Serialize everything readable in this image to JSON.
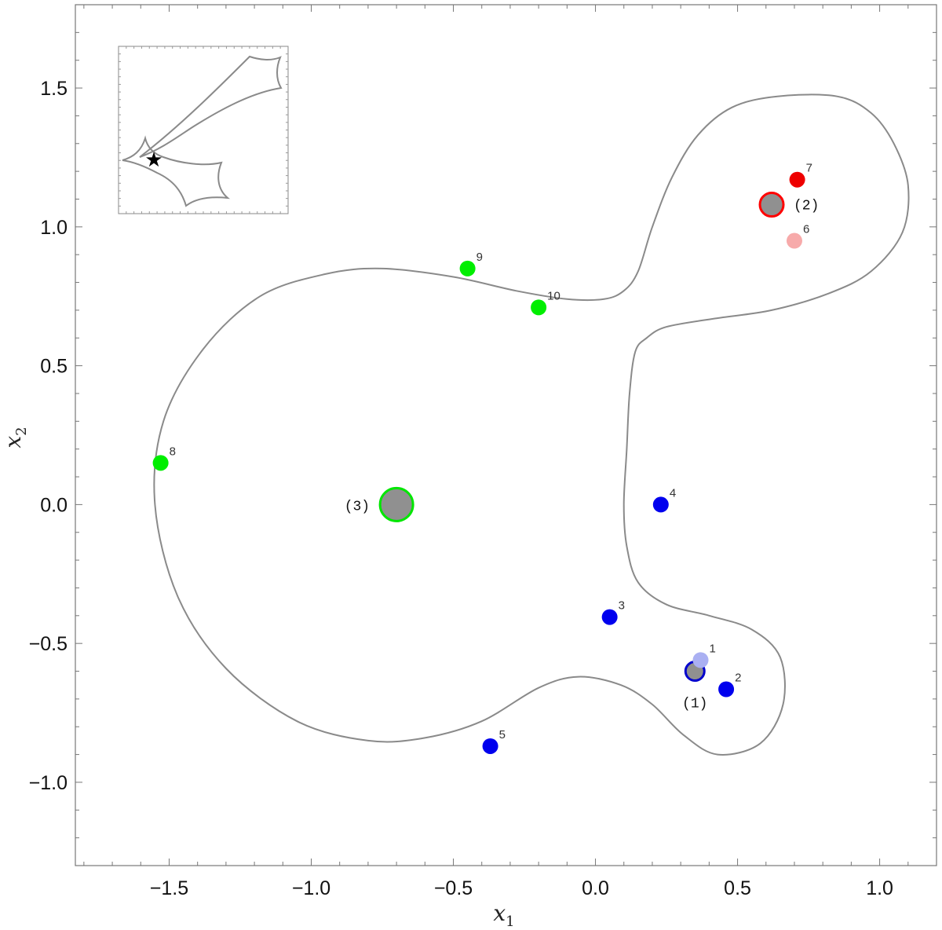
{
  "chart_data": {
    "type": "scatter",
    "title": "",
    "xlabel": "x",
    "xlabel_sub": "1",
    "ylabel": "x",
    "ylabel_sub": "2",
    "xlim": [
      -1.83,
      1.2
    ],
    "ylim": [
      -1.3,
      1.8
    ],
    "xticks": [
      {
        "v": -1.5,
        "label": "−1.5"
      },
      {
        "v": -1.0,
        "label": "−1.0"
      },
      {
        "v": -0.5,
        "label": "−0.5"
      },
      {
        "v": 0.0,
        "label": "0.0"
      },
      {
        "v": 0.5,
        "label": "0.5"
      },
      {
        "v": 1.0,
        "label": "1.0"
      }
    ],
    "yticks": [
      {
        "v": -1.0,
        "label": "−1.0"
      },
      {
        "v": -0.5,
        "label": "−0.5"
      },
      {
        "v": 0.0,
        "label": "0.0"
      },
      {
        "v": 0.5,
        "label": "0.5"
      },
      {
        "v": 1.0,
        "label": "1.0"
      },
      {
        "v": 1.5,
        "label": "1.5"
      }
    ],
    "grid": false,
    "critical_curve_color": "#8a8a8a",
    "critical_curve": [
      [
        0.64,
        1.47
      ],
      [
        0.85,
        1.47
      ],
      [
        0.97,
        1.41
      ],
      [
        1.05,
        1.3
      ],
      [
        1.1,
        1.15
      ],
      [
        1.08,
        0.98
      ],
      [
        0.97,
        0.84
      ],
      [
        0.82,
        0.76
      ],
      [
        0.62,
        0.7
      ],
      [
        0.42,
        0.67
      ],
      [
        0.25,
        0.64
      ],
      [
        0.18,
        0.6
      ],
      [
        0.14,
        0.55
      ],
      [
        0.12,
        0.4
      ],
      [
        0.11,
        0.2
      ],
      [
        0.1,
        0.0
      ],
      [
        0.11,
        -0.15
      ],
      [
        0.15,
        -0.28
      ],
      [
        0.25,
        -0.36
      ],
      [
        0.4,
        -0.4
      ],
      [
        0.55,
        -0.45
      ],
      [
        0.65,
        -0.55
      ],
      [
        0.66,
        -0.72
      ],
      [
        0.58,
        -0.86
      ],
      [
        0.43,
        -0.9
      ],
      [
        0.31,
        -0.83
      ],
      [
        0.2,
        -0.72
      ],
      [
        0.09,
        -0.65
      ],
      [
        -0.06,
        -0.62
      ],
      [
        -0.2,
        -0.66
      ],
      [
        -0.4,
        -0.78
      ],
      [
        -0.6,
        -0.84
      ],
      [
        -0.8,
        -0.85
      ],
      [
        -1.05,
        -0.78
      ],
      [
        -1.3,
        -0.59
      ],
      [
        -1.47,
        -0.33
      ],
      [
        -1.55,
        0.0
      ],
      [
        -1.52,
        0.3
      ],
      [
        -1.38,
        0.56
      ],
      [
        -1.18,
        0.75
      ],
      [
        -0.95,
        0.83
      ],
      [
        -0.75,
        0.85
      ],
      [
        -0.5,
        0.82
      ],
      [
        -0.28,
        0.77
      ],
      [
        -0.1,
        0.74
      ],
      [
        0.03,
        0.74
      ],
      [
        0.1,
        0.77
      ],
      [
        0.15,
        0.84
      ],
      [
        0.2,
        1.0
      ],
      [
        0.27,
        1.18
      ],
      [
        0.36,
        1.33
      ],
      [
        0.48,
        1.43
      ],
      [
        0.64,
        1.47
      ]
    ],
    "lenses": [
      {
        "label": "(1)",
        "x": 0.35,
        "y": -0.6,
        "ring_color": "#0000cc",
        "r": 12
      },
      {
        "label": "(2)",
        "x": 0.62,
        "y": 1.08,
        "ring_color": "#ff0000",
        "r": 15
      },
      {
        "label": "(3)",
        "x": -0.7,
        "y": 0.0,
        "ring_color": "#00e600",
        "r": 21
      }
    ],
    "lens_fill": "#909090",
    "images": [
      {
        "label": "1",
        "x": 0.37,
        "y": -0.56,
        "color": "#aab0f2"
      },
      {
        "label": "2",
        "x": 0.46,
        "y": -0.665,
        "color": "#0000ee"
      },
      {
        "label": "3",
        "x": 0.05,
        "y": -0.405,
        "color": "#0000ee"
      },
      {
        "label": "4",
        "x": 0.23,
        "y": 0.0,
        "color": "#0000ee"
      },
      {
        "label": "5",
        "x": -0.37,
        "y": -0.87,
        "color": "#0000ee"
      },
      {
        "label": "6",
        "x": 0.7,
        "y": 0.95,
        "color": "#f7aaaa"
      },
      {
        "label": "7",
        "x": 0.71,
        "y": 1.17,
        "color": "#ee0000"
      },
      {
        "label": "8",
        "x": -1.53,
        "y": 0.15,
        "color": "#00ee00"
      },
      {
        "label": "9",
        "x": -0.45,
        "y": 0.85,
        "color": "#00ee00"
      },
      {
        "label": "10",
        "x": -0.2,
        "y": 0.71,
        "color": "#00ee00"
      }
    ],
    "inset": {
      "content": "caustics with source position marked by a star",
      "star_symbol": "★"
    }
  }
}
